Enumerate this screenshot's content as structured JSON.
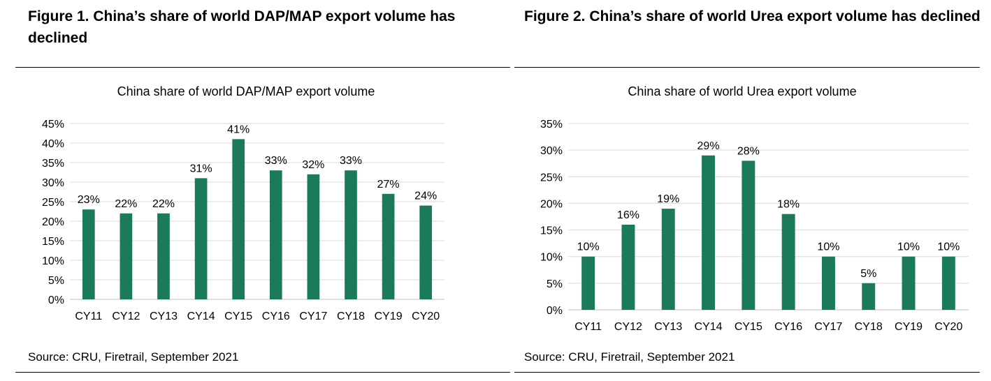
{
  "figures": [
    {
      "figure_title": "Figure 1. China’s share of world DAP/MAP export volume has declined",
      "source": "Source: CRU, Firetrail, September 2021"
    },
    {
      "figure_title": "Figure 2. China’s share of world Urea export volume has declined",
      "source": "Source: CRU, Firetrail, September 2021"
    }
  ],
  "colors": {
    "bar": "#1b7a57",
    "grid": "#d9d9d9"
  },
  "chart_data": [
    {
      "type": "bar",
      "title": "China share of world DAP/MAP export volume",
      "categories": [
        "CY11",
        "CY12",
        "CY13",
        "CY14",
        "CY15",
        "CY16",
        "CY17",
        "CY18",
        "CY19",
        "CY20"
      ],
      "values": [
        23,
        22,
        22,
        31,
        41,
        33,
        32,
        33,
        27,
        24
      ],
      "data_labels": [
        "23%",
        "22%",
        "22%",
        "31%",
        "41%",
        "33%",
        "32%",
        "33%",
        "27%",
        "24%"
      ],
      "ylim": [
        0,
        45
      ],
      "yticks": [
        "0%",
        "5%",
        "10%",
        "15%",
        "20%",
        "25%",
        "30%",
        "35%",
        "40%",
        "45%"
      ],
      "xlabel": "",
      "ylabel": "",
      "grid": true,
      "legend": "none"
    },
    {
      "type": "bar",
      "title": "China share of world Urea export volume",
      "categories": [
        "CY11",
        "CY12",
        "CY13",
        "CY14",
        "CY15",
        "CY16",
        "CY17",
        "CY18",
        "CY19",
        "CY20"
      ],
      "values": [
        10,
        16,
        19,
        29,
        28,
        18,
        10,
        5,
        10,
        10
      ],
      "data_labels": [
        "10%",
        "16%",
        "19%",
        "29%",
        "28%",
        "18%",
        "10%",
        "5%",
        "10%",
        "10%"
      ],
      "ylim": [
        0,
        35
      ],
      "yticks": [
        "0%",
        "5%",
        "10%",
        "15%",
        "20%",
        "25%",
        "30%",
        "35%"
      ],
      "xlabel": "",
      "ylabel": "",
      "grid": true,
      "legend": "none"
    }
  ]
}
